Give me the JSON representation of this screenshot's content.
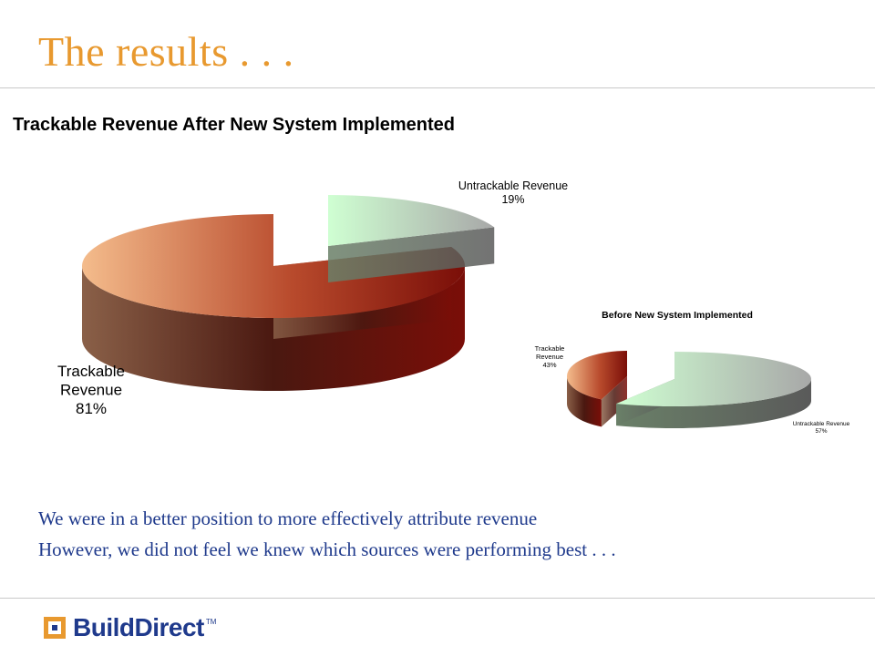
{
  "slide": {
    "title": "The results . . .",
    "captions": [
      "We were in a better position to more effectively attribute revenue",
      "However, we did not feel we knew which sources were performing best . . ."
    ]
  },
  "logo": {
    "build": "Build",
    "direct": "Direct",
    "tm": "TM",
    "color": "#1F3A8C",
    "accent": "#E8992F"
  },
  "chart_data": [
    {
      "type": "pie",
      "title": "Trackable Revenue After New System Implemented",
      "three_d": true,
      "exploded": true,
      "slices": [
        {
          "label": "Trackable Revenue",
          "value": 81,
          "display": "81%",
          "color": "#8B1A10",
          "highlight": "#F0B890"
        },
        {
          "label": "Untrackable Revenue",
          "value": 19,
          "display": "19%",
          "color": "#707070",
          "highlight": "#C8FFC8"
        }
      ]
    },
    {
      "type": "pie",
      "title": "Before New System Implemented",
      "three_d": true,
      "exploded": true,
      "slices": [
        {
          "label": "Trackable Revenue",
          "value": 43,
          "display": "43%",
          "color": "#8B1A10",
          "highlight": "#F0B890"
        },
        {
          "label": "Untrackable Revenue",
          "value": 57,
          "display": "57%",
          "color": "#707070",
          "highlight": "#C8FFC8"
        }
      ]
    }
  ]
}
